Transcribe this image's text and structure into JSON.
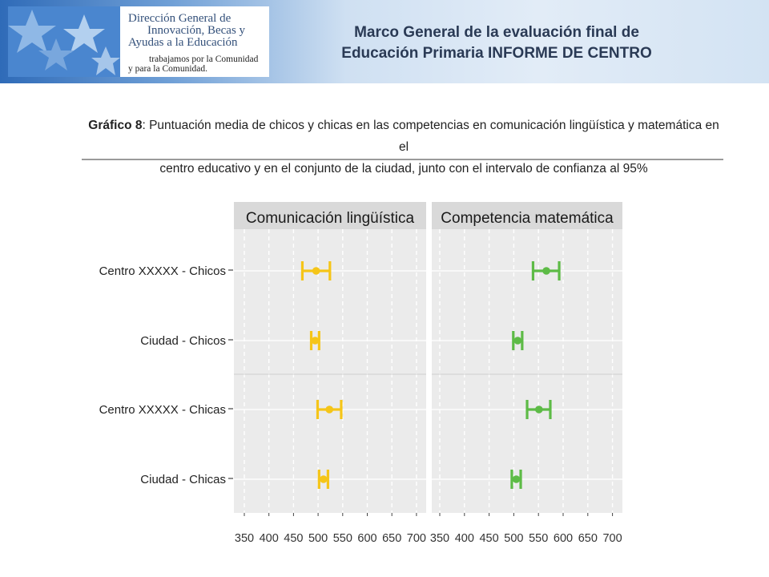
{
  "header": {
    "logo_lines": [
      "Dirección General de",
      "Innovación, Becas y",
      "Ayudas a la Educación"
    ],
    "logo_slogan": [
      "trabajamos por la Comunidad",
      "y para la Comunidad."
    ],
    "title_line1": "Marco General de la evaluación final de",
    "title_line2": "Educación Primaria INFORME DE CENTRO"
  },
  "caption": {
    "label": "Gráfico 8",
    "line1": ": Puntuación media de chicos y chicas en las competencias en comunicación lingüística y matemática en el",
    "line2": "centro educativo y en el conjunto de  la ciudad, junto con el intervalo de confianza al 95%"
  },
  "colors": {
    "linguistica": "#f5c518",
    "matematica": "#5dbb46",
    "strip": "#d9d9d9",
    "panel": "#ebebeb"
  },
  "chart_data": {
    "type": "scatter",
    "categories": [
      "Centro XXXXX - Chicos",
      "Ciudad - Chicos",
      "Centro XXXXX - Chicas",
      "Ciudad - Chicas"
    ],
    "x_ticks": [
      350,
      400,
      450,
      500,
      550,
      600,
      650,
      700
    ],
    "xlim": [
      340,
      710
    ],
    "panels": [
      {
        "title": "Comunicación lingüística",
        "color": "#f5c518",
        "points": [
          {
            "category": "Centro XXXXX - Chicos",
            "mean": 496,
            "low": 468,
            "high": 524
          },
          {
            "category": "Ciudad - Chicos",
            "mean": 494,
            "low": 486,
            "high": 502
          },
          {
            "category": "Centro XXXXX - Chicas",
            "mean": 523,
            "low": 499,
            "high": 547
          },
          {
            "category": "Ciudad - Chicas",
            "mean": 511,
            "low": 502,
            "high": 520
          }
        ]
      },
      {
        "title": "Competencia matemática",
        "color": "#5dbb46",
        "points": [
          {
            "category": "Centro XXXXX - Chicos",
            "mean": 566,
            "low": 539,
            "high": 592
          },
          {
            "category": "Ciudad - Chicos",
            "mean": 508,
            "low": 499,
            "high": 517
          },
          {
            "category": "Centro XXXXX - Chicas",
            "mean": 551,
            "low": 527,
            "high": 574
          },
          {
            "category": "Ciudad - Chicas",
            "mean": 505,
            "low": 496,
            "high": 514
          }
        ]
      }
    ],
    "grid": true
  }
}
